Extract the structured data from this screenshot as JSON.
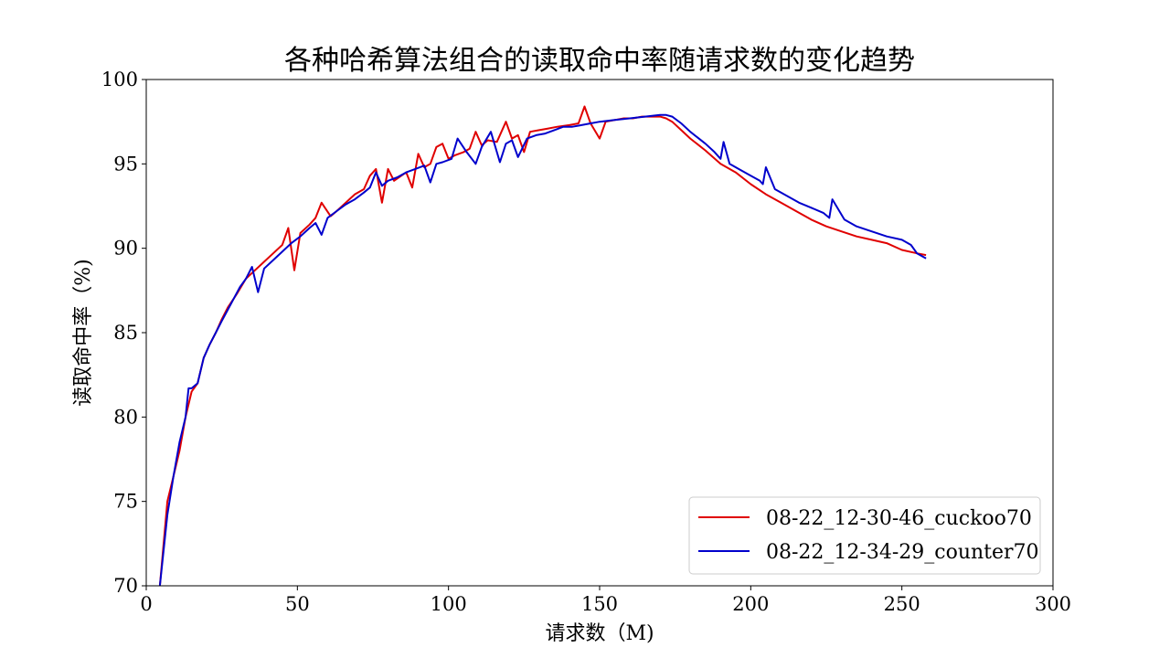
{
  "chart_data": {
    "type": "line",
    "title": "各种哈希算法组合的读取命中率随请求数的变化趋势",
    "xlabel": "请求数（M)",
    "ylabel": "读取命中率（%)",
    "xlim": [
      0,
      300
    ],
    "ylim": [
      70,
      100
    ],
    "xticks": [
      0,
      50,
      100,
      150,
      200,
      250,
      300
    ],
    "yticks": [
      70,
      75,
      80,
      85,
      90,
      95,
      100
    ],
    "grid": false,
    "legend_position": "lower-right",
    "series": [
      {
        "name": "08-22_12-30-46_cuckoo70",
        "color": "#e00000",
        "x": [
          4.5,
          7,
          9,
          11,
          13,
          15,
          17,
          19,
          21,
          23,
          25,
          27,
          30,
          33,
          36,
          39,
          42,
          45,
          47,
          49,
          51,
          54,
          56,
          58,
          61,
          63,
          66,
          69,
          72,
          74,
          76,
          78,
          80,
          82,
          86,
          88,
          90,
          92,
          94,
          96,
          98,
          100,
          102,
          105,
          107,
          109,
          111,
          113,
          116,
          119,
          121,
          123,
          125,
          127,
          130,
          133,
          136,
          140,
          143,
          145,
          147,
          150,
          152,
          155,
          158,
          161,
          164,
          167,
          170,
          172,
          174,
          177,
          180,
          185,
          190,
          195,
          200,
          205,
          210,
          215,
          220,
          225,
          230,
          235,
          240,
          245,
          250,
          255,
          258
        ],
        "y": [
          70.0,
          75.0,
          76.5,
          78.0,
          80.0,
          81.5,
          82.0,
          83.5,
          84.3,
          85.0,
          85.8,
          86.5,
          87.3,
          88.2,
          88.7,
          89.2,
          89.7,
          90.2,
          91.2,
          88.7,
          90.9,
          91.4,
          91.8,
          92.7,
          91.9,
          92.2,
          92.7,
          93.2,
          93.5,
          94.3,
          94.7,
          92.7,
          94.7,
          94.0,
          94.5,
          93.6,
          95.6,
          94.8,
          95.0,
          96.0,
          96.2,
          95.3,
          95.5,
          95.7,
          95.9,
          96.9,
          96.1,
          96.4,
          96.3,
          97.5,
          96.5,
          96.7,
          95.7,
          96.9,
          97.0,
          97.1,
          97.2,
          97.3,
          97.4,
          98.4,
          97.4,
          96.5,
          97.5,
          97.6,
          97.7,
          97.7,
          97.8,
          97.8,
          97.8,
          97.7,
          97.5,
          97.0,
          96.5,
          95.8,
          95.0,
          94.5,
          93.8,
          93.2,
          92.7,
          92.2,
          91.7,
          91.3,
          91.0,
          90.7,
          90.5,
          90.3,
          89.9,
          89.7,
          89.6
        ]
      },
      {
        "name": "08-22_12-34-29_counter70",
        "color": "#0000cc",
        "x": [
          4.5,
          7,
          9,
          11,
          13,
          14,
          15,
          17,
          19,
          21,
          23,
          25,
          28,
          31,
          33,
          35,
          37,
          39,
          42,
          45,
          48,
          51,
          54,
          56,
          58,
          60,
          63,
          66,
          69,
          72,
          74,
          76,
          78,
          80,
          83,
          86,
          89,
          92,
          94,
          96,
          98,
          101,
          103,
          106,
          109,
          111,
          114,
          117,
          119,
          121,
          123,
          126,
          129,
          132,
          135,
          138,
          141,
          144,
          147,
          150,
          155,
          160,
          165,
          170,
          172,
          174,
          177,
          180,
          185,
          188,
          190,
          191,
          193,
          196,
          200,
          203,
          204,
          205,
          208,
          212,
          216,
          220,
          224,
          226,
          227,
          231,
          235,
          240,
          245,
          250,
          253,
          255,
          258
        ],
        "y": [
          70.0,
          74.2,
          76.5,
          78.5,
          80.0,
          81.7,
          81.7,
          82.0,
          83.5,
          84.3,
          85.0,
          85.7,
          86.7,
          87.7,
          88.2,
          88.9,
          87.4,
          88.8,
          89.3,
          89.8,
          90.3,
          90.7,
          91.2,
          91.5,
          90.8,
          91.8,
          92.2,
          92.6,
          92.9,
          93.3,
          93.6,
          94.5,
          93.7,
          94.0,
          94.2,
          94.5,
          94.7,
          94.9,
          93.9,
          95.0,
          95.1,
          95.3,
          96.5,
          95.7,
          95.0,
          96.0,
          96.9,
          95.1,
          96.2,
          96.4,
          95.4,
          96.5,
          96.7,
          96.8,
          97.0,
          97.2,
          97.2,
          97.3,
          97.4,
          97.5,
          97.6,
          97.7,
          97.8,
          97.9,
          97.9,
          97.8,
          97.4,
          96.9,
          96.2,
          95.7,
          95.3,
          96.3,
          95.0,
          94.7,
          94.3,
          94.0,
          93.8,
          94.8,
          93.5,
          93.1,
          92.7,
          92.4,
          92.1,
          91.8,
          92.9,
          91.7,
          91.3,
          91.0,
          90.7,
          90.5,
          90.2,
          89.7,
          89.4
        ]
      }
    ]
  }
}
